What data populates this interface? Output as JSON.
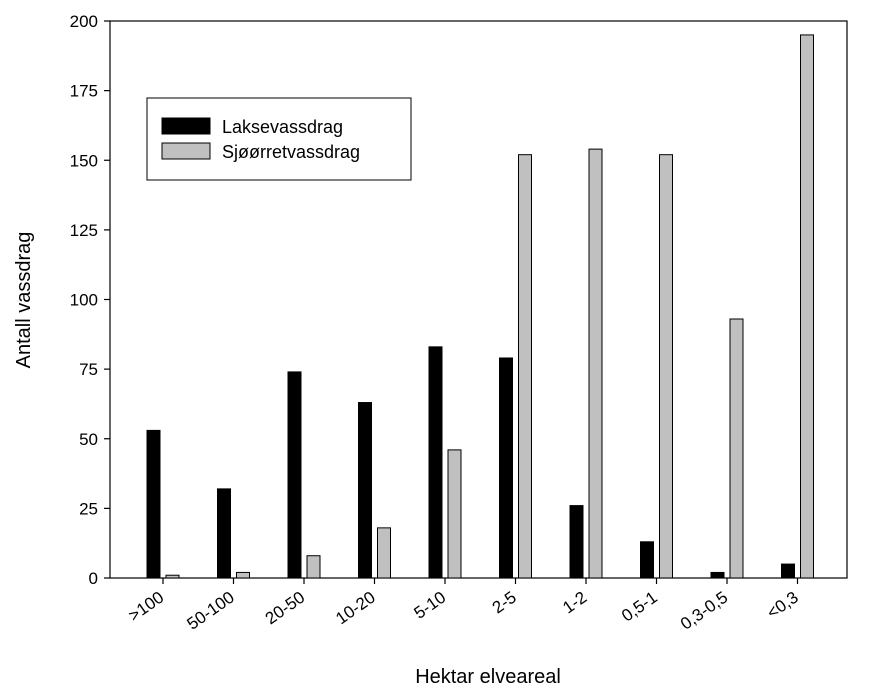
{
  "chart_data": {
    "type": "bar",
    "xlabel": "Hektar elveareal",
    "ylabel": "Antall vassdrag",
    "ylim": [
      0,
      200
    ],
    "yticks": [
      0,
      25,
      50,
      75,
      100,
      125,
      150,
      175,
      200
    ],
    "categories": [
      ">100",
      "50-100",
      "20-50",
      "10-20",
      "5-10",
      "2-5",
      "1-2",
      "0,5-1",
      "0,3-0,5",
      "<0,3"
    ],
    "series": [
      {
        "name": "Laksevassdrag",
        "color": "#000000",
        "values": [
          53,
          32,
          74,
          63,
          83,
          79,
          26,
          13,
          2,
          5
        ]
      },
      {
        "name": "Sjøørretvassdrag",
        "color": "#c0c0c0",
        "values": [
          1,
          2,
          8,
          18,
          46,
          152,
          154,
          152,
          93,
          195
        ]
      }
    ],
    "legend_position": "top-left",
    "grid": false
  }
}
